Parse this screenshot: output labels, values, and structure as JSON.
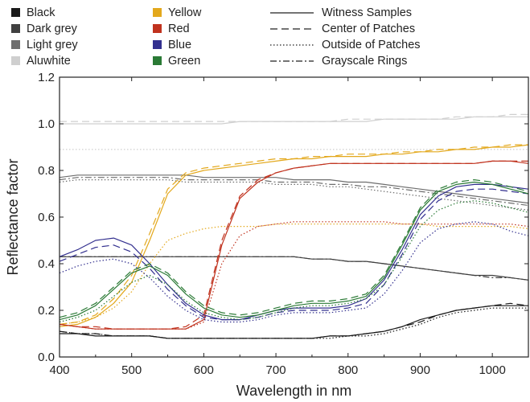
{
  "chart_data": {
    "type": "line",
    "title": "",
    "xlabel": "Wavelength in nm",
    "ylabel": "Reflectance factor",
    "xlim": [
      400,
      1050
    ],
    "ylim": [
      0,
      1.2
    ],
    "xticks": [
      400,
      500,
      600,
      700,
      800,
      900,
      1000
    ],
    "yticks": [
      0.0,
      0.2,
      0.4,
      0.6,
      0.8,
      1.0,
      1.2
    ],
    "xtick_labels": [
      "400",
      "500",
      "600",
      "700",
      "800",
      "900",
      "1000"
    ],
    "ytick_labels": [
      "0.0",
      "0.2",
      "0.4",
      "0.6",
      "0.8",
      "1.0",
      "1.2"
    ],
    "grid": false,
    "legend_placement": "top",
    "color_legend": [
      {
        "name": "Black",
        "color": "#1a1a1a"
      },
      {
        "name": "Dark grey",
        "color": "#404040"
      },
      {
        "name": "Light grey",
        "color": "#6e6e6e"
      },
      {
        "name": "Aluwhite",
        "color": "#cfcfcf"
      },
      {
        "name": "Yellow",
        "color": "#e3a81c"
      },
      {
        "name": "Red",
        "color": "#c0321e"
      },
      {
        "name": "Blue",
        "color": "#33308f"
      },
      {
        "name": "Green",
        "color": "#2a7a35"
      }
    ],
    "style_legend": [
      {
        "name": "Witness Samples",
        "dash": "solid"
      },
      {
        "name": "Center of Patches",
        "dash": "dashed"
      },
      {
        "name": "Outside of Patches",
        "dash": "dotted"
      },
      {
        "name": "Grayscale Rings",
        "dash": "dashdot"
      }
    ],
    "x": [
      400,
      425,
      450,
      475,
      500,
      525,
      550,
      575,
      600,
      625,
      650,
      675,
      700,
      725,
      750,
      775,
      800,
      825,
      850,
      875,
      900,
      925,
      950,
      975,
      1000,
      1025,
      1050
    ],
    "series": [
      {
        "color": "Black",
        "style": "Witness Samples",
        "values": [
          0.1,
          0.1,
          0.09,
          0.09,
          0.09,
          0.09,
          0.08,
          0.08,
          0.08,
          0.08,
          0.08,
          0.08,
          0.08,
          0.08,
          0.08,
          0.09,
          0.09,
          0.1,
          0.11,
          0.13,
          0.16,
          0.18,
          0.2,
          0.21,
          0.22,
          0.22,
          0.22
        ]
      },
      {
        "color": "Black",
        "style": "Center of Patches",
        "values": [
          0.11,
          0.1,
          0.1,
          0.09,
          0.09,
          0.09,
          0.08,
          0.08,
          0.08,
          0.08,
          0.08,
          0.08,
          0.08,
          0.08,
          0.08,
          0.09,
          0.09,
          0.1,
          0.11,
          0.13,
          0.15,
          0.18,
          0.2,
          0.21,
          0.22,
          0.23,
          0.22
        ]
      },
      {
        "color": "Black",
        "style": "Outside of Patches",
        "values": [
          0.11,
          0.1,
          0.1,
          0.09,
          0.09,
          0.09,
          0.08,
          0.08,
          0.08,
          0.08,
          0.08,
          0.08,
          0.08,
          0.08,
          0.08,
          0.08,
          0.09,
          0.09,
          0.1,
          0.12,
          0.14,
          0.17,
          0.19,
          0.2,
          0.21,
          0.21,
          0.21
        ]
      },
      {
        "color": "Dark grey",
        "style": "Witness Samples",
        "values": [
          0.43,
          0.43,
          0.43,
          0.43,
          0.43,
          0.43,
          0.43,
          0.43,
          0.43,
          0.43,
          0.43,
          0.43,
          0.43,
          0.43,
          0.42,
          0.42,
          0.41,
          0.41,
          0.4,
          0.39,
          0.38,
          0.37,
          0.36,
          0.35,
          0.35,
          0.34,
          0.33
        ]
      },
      {
        "color": "Dark grey",
        "style": "Grayscale Rings",
        "values": [
          0.43,
          0.43,
          0.43,
          0.43,
          0.43,
          0.43,
          0.43,
          0.43,
          0.43,
          0.43,
          0.43,
          0.43,
          0.43,
          0.43,
          0.42,
          0.42,
          0.41,
          0.41,
          0.4,
          0.39,
          0.38,
          0.37,
          0.36,
          0.35,
          0.34,
          0.34,
          0.33
        ]
      },
      {
        "color": "Light grey",
        "style": "Witness Samples",
        "values": [
          0.77,
          0.78,
          0.78,
          0.78,
          0.78,
          0.78,
          0.78,
          0.78,
          0.77,
          0.77,
          0.77,
          0.77,
          0.77,
          0.76,
          0.76,
          0.76,
          0.75,
          0.75,
          0.74,
          0.73,
          0.72,
          0.71,
          0.7,
          0.69,
          0.68,
          0.67,
          0.66
        ]
      },
      {
        "color": "Light grey",
        "style": "Grayscale Rings",
        "values": [
          0.76,
          0.77,
          0.77,
          0.77,
          0.77,
          0.77,
          0.77,
          0.76,
          0.76,
          0.76,
          0.76,
          0.76,
          0.75,
          0.75,
          0.75,
          0.74,
          0.74,
          0.73,
          0.73,
          0.72,
          0.71,
          0.7,
          0.69,
          0.68,
          0.67,
          0.66,
          0.65
        ]
      },
      {
        "color": "Light grey",
        "style": "Outside of Patches",
        "values": [
          0.75,
          0.76,
          0.76,
          0.76,
          0.76,
          0.76,
          0.76,
          0.75,
          0.75,
          0.75,
          0.75,
          0.75,
          0.74,
          0.74,
          0.74,
          0.73,
          0.73,
          0.72,
          0.71,
          0.7,
          0.69,
          0.68,
          0.67,
          0.66,
          0.65,
          0.64,
          0.63
        ]
      },
      {
        "color": "Aluwhite",
        "style": "Witness Samples",
        "values": [
          1.0,
          1.0,
          1.0,
          1.0,
          1.0,
          1.0,
          1.0,
          1.0,
          1.0,
          1.0,
          1.01,
          1.01,
          1.01,
          1.01,
          1.01,
          1.01,
          1.01,
          1.01,
          1.02,
          1.02,
          1.02,
          1.02,
          1.02,
          1.03,
          1.03,
          1.03,
          1.03
        ]
      },
      {
        "color": "Aluwhite",
        "style": "Center of Patches",
        "values": [
          1.01,
          1.01,
          1.01,
          1.01,
          1.01,
          1.01,
          1.01,
          1.01,
          1.01,
          1.01,
          1.01,
          1.01,
          1.01,
          1.01,
          1.01,
          1.01,
          1.02,
          1.02,
          1.02,
          1.02,
          1.02,
          1.02,
          1.03,
          1.03,
          1.03,
          1.04,
          1.04
        ]
      },
      {
        "color": "Aluwhite",
        "style": "Outside of Patches",
        "values": [
          0.89,
          0.89,
          0.89,
          0.89,
          0.89,
          0.89,
          0.89,
          0.89,
          0.89,
          0.89,
          0.89,
          0.89,
          0.89,
          0.89,
          0.89,
          0.89,
          0.89,
          0.89,
          0.89,
          0.89,
          0.89,
          0.89,
          0.89,
          0.89,
          0.89,
          0.89,
          0.89
        ]
      },
      {
        "color": "Yellow",
        "style": "Witness Samples",
        "values": [
          0.13,
          0.14,
          0.17,
          0.23,
          0.32,
          0.5,
          0.7,
          0.78,
          0.8,
          0.81,
          0.82,
          0.83,
          0.84,
          0.85,
          0.85,
          0.86,
          0.86,
          0.86,
          0.87,
          0.87,
          0.88,
          0.88,
          0.89,
          0.89,
          0.9,
          0.9,
          0.91
        ]
      },
      {
        "color": "Yellow",
        "style": "Center of Patches",
        "values": [
          0.14,
          0.15,
          0.18,
          0.25,
          0.35,
          0.53,
          0.72,
          0.79,
          0.81,
          0.82,
          0.83,
          0.84,
          0.85,
          0.85,
          0.86,
          0.86,
          0.87,
          0.87,
          0.87,
          0.88,
          0.88,
          0.89,
          0.89,
          0.9,
          0.9,
          0.91,
          0.91
        ]
      },
      {
        "color": "Yellow",
        "style": "Outside of Patches",
        "values": [
          0.14,
          0.15,
          0.17,
          0.21,
          0.28,
          0.4,
          0.5,
          0.53,
          0.55,
          0.56,
          0.56,
          0.56,
          0.57,
          0.57,
          0.57,
          0.57,
          0.57,
          0.57,
          0.57,
          0.57,
          0.57,
          0.56,
          0.56,
          0.56,
          0.56,
          0.56,
          0.55
        ]
      },
      {
        "color": "Red",
        "style": "Witness Samples",
        "values": [
          0.14,
          0.13,
          0.12,
          0.12,
          0.12,
          0.12,
          0.12,
          0.12,
          0.16,
          0.48,
          0.68,
          0.75,
          0.79,
          0.81,
          0.82,
          0.83,
          0.83,
          0.83,
          0.83,
          0.83,
          0.83,
          0.83,
          0.83,
          0.83,
          0.84,
          0.84,
          0.83
        ]
      },
      {
        "color": "Red",
        "style": "Center of Patches",
        "values": [
          0.14,
          0.13,
          0.13,
          0.12,
          0.12,
          0.12,
          0.12,
          0.13,
          0.18,
          0.5,
          0.69,
          0.76,
          0.79,
          0.81,
          0.82,
          0.83,
          0.83,
          0.83,
          0.83,
          0.83,
          0.83,
          0.83,
          0.83,
          0.83,
          0.84,
          0.84,
          0.84
        ]
      },
      {
        "color": "Red",
        "style": "Outside of Patches",
        "values": [
          0.14,
          0.13,
          0.12,
          0.12,
          0.12,
          0.12,
          0.12,
          0.12,
          0.15,
          0.4,
          0.52,
          0.56,
          0.57,
          0.58,
          0.58,
          0.58,
          0.58,
          0.58,
          0.58,
          0.57,
          0.57,
          0.57,
          0.57,
          0.57,
          0.57,
          0.57,
          0.56
        ]
      },
      {
        "color": "Blue",
        "style": "Witness Samples",
        "values": [
          0.43,
          0.46,
          0.5,
          0.51,
          0.48,
          0.4,
          0.31,
          0.23,
          0.18,
          0.16,
          0.16,
          0.18,
          0.2,
          0.21,
          0.21,
          0.21,
          0.22,
          0.25,
          0.33,
          0.46,
          0.61,
          0.69,
          0.73,
          0.74,
          0.74,
          0.73,
          0.72
        ]
      },
      {
        "color": "Blue",
        "style": "Center of Patches",
        "values": [
          0.41,
          0.44,
          0.47,
          0.48,
          0.45,
          0.38,
          0.29,
          0.22,
          0.17,
          0.16,
          0.16,
          0.17,
          0.19,
          0.2,
          0.2,
          0.2,
          0.21,
          0.23,
          0.31,
          0.44,
          0.59,
          0.67,
          0.71,
          0.72,
          0.72,
          0.71,
          0.7
        ]
      },
      {
        "color": "Blue",
        "style": "Outside of Patches",
        "values": [
          0.36,
          0.39,
          0.41,
          0.42,
          0.4,
          0.34,
          0.26,
          0.2,
          0.16,
          0.15,
          0.15,
          0.16,
          0.18,
          0.19,
          0.19,
          0.19,
          0.2,
          0.21,
          0.27,
          0.37,
          0.49,
          0.55,
          0.57,
          0.58,
          0.57,
          0.54,
          0.52
        ]
      },
      {
        "color": "Green",
        "style": "Witness Samples",
        "values": [
          0.16,
          0.18,
          0.22,
          0.29,
          0.36,
          0.39,
          0.35,
          0.27,
          0.21,
          0.18,
          0.17,
          0.18,
          0.2,
          0.22,
          0.23,
          0.23,
          0.24,
          0.26,
          0.34,
          0.48,
          0.63,
          0.71,
          0.74,
          0.75,
          0.74,
          0.72,
          0.7
        ]
      },
      {
        "color": "Green",
        "style": "Center of Patches",
        "values": [
          0.17,
          0.19,
          0.23,
          0.3,
          0.37,
          0.4,
          0.36,
          0.28,
          0.22,
          0.19,
          0.18,
          0.19,
          0.21,
          0.23,
          0.24,
          0.24,
          0.25,
          0.27,
          0.35,
          0.49,
          0.64,
          0.72,
          0.75,
          0.76,
          0.75,
          0.73,
          0.71
        ]
      },
      {
        "color": "Green",
        "style": "Outside of Patches",
        "values": [
          0.15,
          0.17,
          0.2,
          0.26,
          0.32,
          0.35,
          0.31,
          0.24,
          0.19,
          0.17,
          0.16,
          0.17,
          0.19,
          0.21,
          0.22,
          0.22,
          0.23,
          0.25,
          0.31,
          0.43,
          0.56,
          0.63,
          0.66,
          0.67,
          0.66,
          0.64,
          0.62
        ]
      }
    ]
  }
}
